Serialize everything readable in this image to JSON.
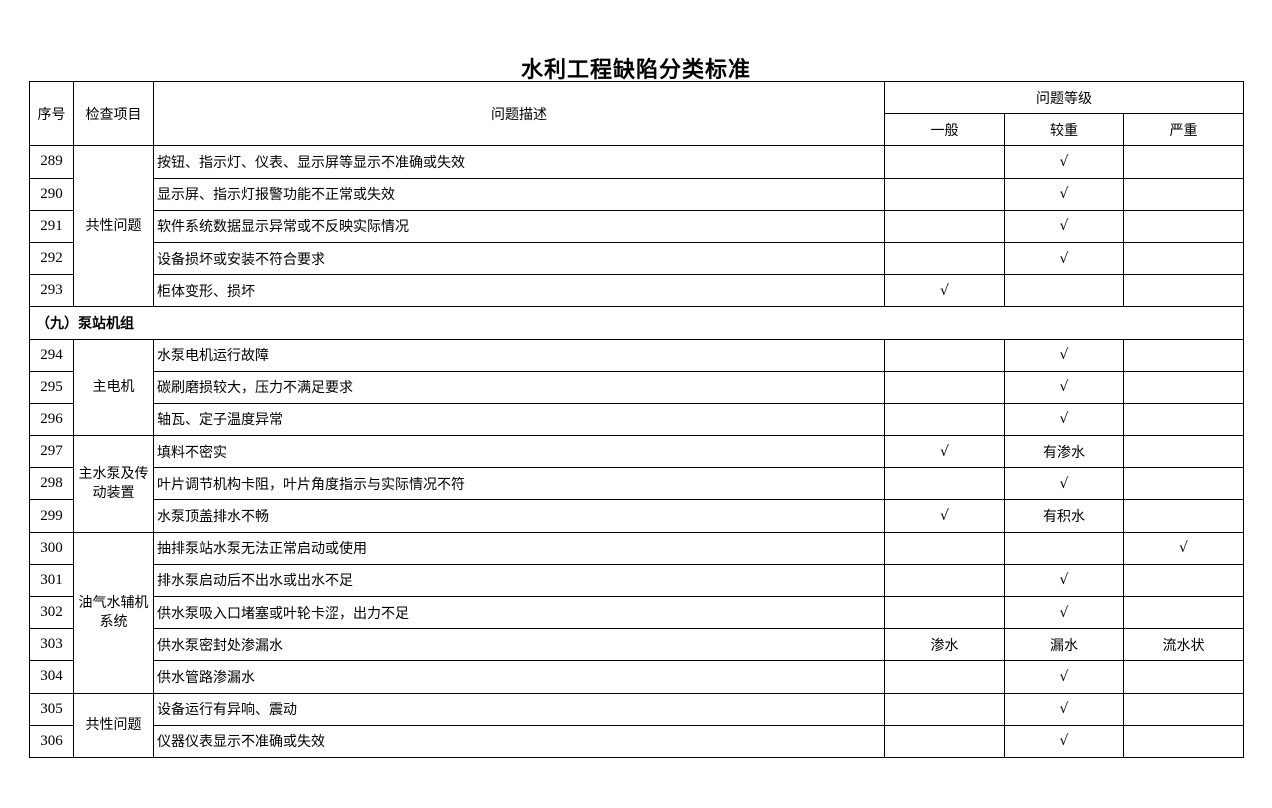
{
  "title": "水利工程缺陷分类标准",
  "headers": {
    "seq": "序号",
    "item": "检查项目",
    "desc": "问题描述",
    "level_group": "问题等级",
    "levels": [
      "一般",
      "较重",
      "严重"
    ]
  },
  "blocks": [
    {
      "type": "group",
      "category": "共性问题",
      "rows": [
        {
          "id": "289",
          "desc": "按钮、指示灯、仪表、显示屏等显示不准确或失效",
          "levels": [
            "",
            "√",
            ""
          ]
        },
        {
          "id": "290",
          "desc": "显示屏、指示灯报警功能不正常或失效",
          "levels": [
            "",
            "√",
            ""
          ]
        },
        {
          "id": "291",
          "desc": "软件系统数据显示异常或不反映实际情况",
          "levels": [
            "",
            "√",
            ""
          ]
        },
        {
          "id": "292",
          "desc": "设备损坏或安装不符合要求",
          "levels": [
            "",
            "√",
            ""
          ]
        },
        {
          "id": "293",
          "desc": "柜体变形、损坏",
          "levels": [
            "√",
            "",
            ""
          ]
        }
      ]
    },
    {
      "type": "section",
      "label": "（九）泵站机组"
    },
    {
      "type": "group",
      "category": "主电机",
      "rows": [
        {
          "id": "294",
          "desc": "水泵电机运行故障",
          "levels": [
            "",
            "√",
            ""
          ]
        },
        {
          "id": "295",
          "desc": "碳刷磨损较大，压力不满足要求",
          "levels": [
            "",
            "√",
            ""
          ]
        },
        {
          "id": "296",
          "desc": "轴瓦、定子温度异常",
          "levels": [
            "",
            "√",
            ""
          ]
        }
      ]
    },
    {
      "type": "group",
      "category": "主水泵及传动装置",
      "rows": [
        {
          "id": "297",
          "desc": "填料不密实",
          "levels": [
            "√",
            "有渗水",
            ""
          ]
        },
        {
          "id": "298",
          "desc": "叶片调节机构卡阻，叶片角度指示与实际情况不符",
          "levels": [
            "",
            "√",
            ""
          ]
        },
        {
          "id": "299",
          "desc": "水泵顶盖排水不畅",
          "levels": [
            "√",
            "有积水",
            ""
          ]
        }
      ]
    },
    {
      "type": "group",
      "category": "油气水辅机系统",
      "rows": [
        {
          "id": "300",
          "desc": "抽排泵站水泵无法正常启动或使用",
          "levels": [
            "",
            "",
            "√"
          ]
        },
        {
          "id": "301",
          "desc": "排水泵启动后不出水或出水不足",
          "levels": [
            "",
            "√",
            ""
          ]
        },
        {
          "id": "302",
          "desc": "供水泵吸入口堵塞或叶轮卡涩，出力不足",
          "levels": [
            "",
            "√",
            ""
          ]
        },
        {
          "id": "303",
          "desc": "供水泵密封处渗漏水",
          "levels": [
            "渗水",
            "漏水",
            "流水状"
          ]
        },
        {
          "id": "304",
          "desc": "供水管路渗漏水",
          "levels": [
            "",
            "√",
            ""
          ]
        }
      ]
    },
    {
      "type": "group",
      "category": "共性问题",
      "rows": [
        {
          "id": "305",
          "desc": "设备运行有异响、震动",
          "levels": [
            "",
            "√",
            ""
          ]
        },
        {
          "id": "306",
          "desc": "仪器仪表显示不准确或失效",
          "levels": [
            "",
            "√",
            ""
          ]
        }
      ]
    }
  ]
}
